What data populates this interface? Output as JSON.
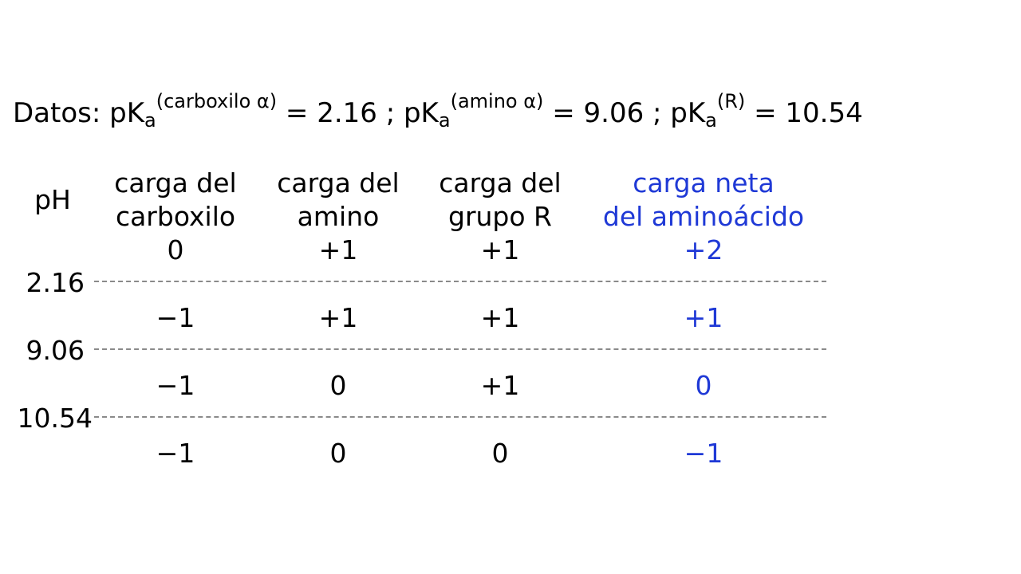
{
  "datos": {
    "label": "Datos: pK",
    "sub_a": "a",
    "pka1_sup": "(carboxilo α)",
    "pka1_val": " = 2.16 ; pK",
    "pka2_sup": "(amino α)",
    "pka2_val": " = 9.06 ; pK",
    "pka3_sup": "(R)",
    "pka3_val": " = 10.54"
  },
  "headers": {
    "ph": "pH",
    "carboxilo_l1": "carga del",
    "carboxilo_l2": "carboxilo",
    "amino_l1": "carga del",
    "amino_l2": "amino",
    "grupo_l1": "carga del",
    "grupo_l2": "grupo R",
    "neta_l1": "carga neta",
    "neta_l2": "del aminoácido"
  },
  "ph_boundaries": [
    "2.16",
    "9.06",
    "10.54"
  ],
  "rows": [
    {
      "carboxilo": "0",
      "amino": "+1",
      "grupo_r": "+1",
      "neta": "+2"
    },
    {
      "carboxilo": "−1",
      "amino": "+1",
      "grupo_r": "+1",
      "neta": "+1"
    },
    {
      "carboxilo": "−1",
      "amino": "0",
      "grupo_r": "+1",
      "neta": "0"
    },
    {
      "carboxilo": "−1",
      "amino": "0",
      "grupo_r": "0",
      "neta": "−1"
    }
  ],
  "colors": {
    "accent": "#1f39d6",
    "divider": "#8a8a8a"
  }
}
